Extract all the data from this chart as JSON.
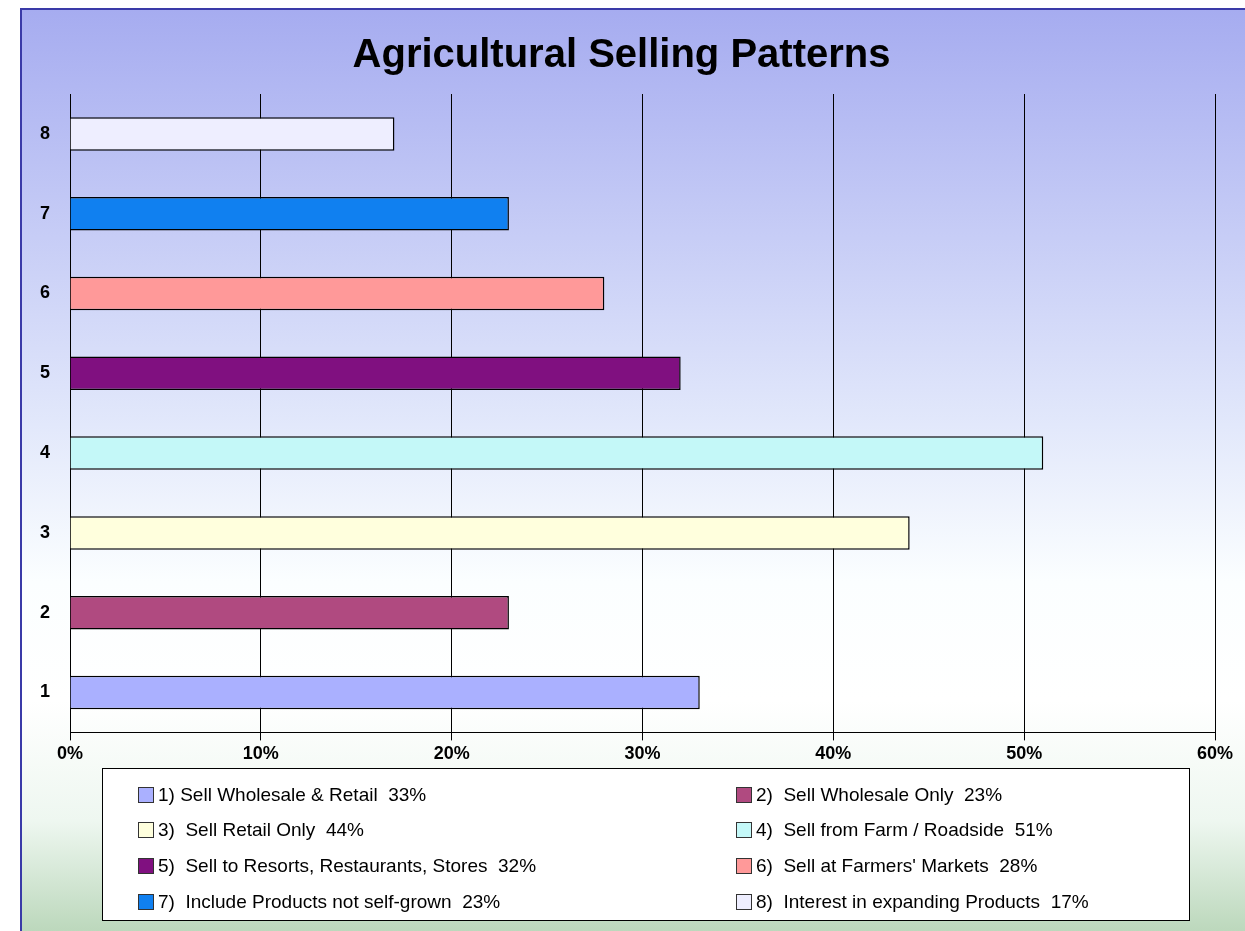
{
  "chart_data": {
    "type": "bar",
    "title": "Agricultural Selling Patterns",
    "orientation": "horizontal",
    "stacked": true,
    "categories": [
      "8",
      "7",
      "6",
      "5",
      "4",
      "3",
      "2",
      "1"
    ],
    "series": [
      {
        "name": "1) Sell Wholesale & Retail  33%",
        "color": "#aab0ff",
        "values": [
          null,
          null,
          null,
          null,
          null,
          null,
          null,
          33
        ]
      },
      {
        "name": "2)  Sell Wholesale Only  23%",
        "color": "#b04a80",
        "values": [
          null,
          null,
          null,
          null,
          null,
          null,
          23,
          null
        ]
      },
      {
        "name": "3)  Sell Retail Only  44%",
        "color": "#ffffdd",
        "values": [
          null,
          null,
          null,
          null,
          null,
          44,
          null,
          null
        ]
      },
      {
        "name": "4)  Sell from Farm / Roadside  51%",
        "color": "#c4f8f8",
        "values": [
          null,
          null,
          null,
          null,
          51,
          null,
          null,
          null
        ]
      },
      {
        "name": "5)  Sell to Resorts, Restaurants, Stores  32%",
        "color": "#801080",
        "values": [
          null,
          null,
          null,
          32,
          null,
          null,
          null,
          null
        ]
      },
      {
        "name": "6)  Sell at Farmers' Markets  28%",
        "color": "#ff9999",
        "values": [
          null,
          null,
          28,
          null,
          null,
          null,
          null,
          null
        ]
      },
      {
        "name": "7)  Include Products not self-grown  23%",
        "color": "#1080f0",
        "values": [
          null,
          23,
          null,
          null,
          null,
          null,
          null,
          null
        ]
      },
      {
        "name": "8)  Interest in expanding Products  17%",
        "color": "#eeeeff",
        "values": [
          17,
          null,
          null,
          null,
          null,
          null,
          null,
          null
        ]
      }
    ],
    "xlim": [
      0,
      60
    ],
    "xticks": [
      {
        "value": 0,
        "label": "0%"
      },
      {
        "value": 10,
        "label": "10%"
      },
      {
        "value": 20,
        "label": "20%"
      },
      {
        "value": 30,
        "label": "30%"
      },
      {
        "value": 40,
        "label": "40%"
      },
      {
        "value": 50,
        "label": "50%"
      },
      {
        "value": 60,
        "label": "60%"
      }
    ],
    "grid": "x",
    "legend": "bottom"
  }
}
